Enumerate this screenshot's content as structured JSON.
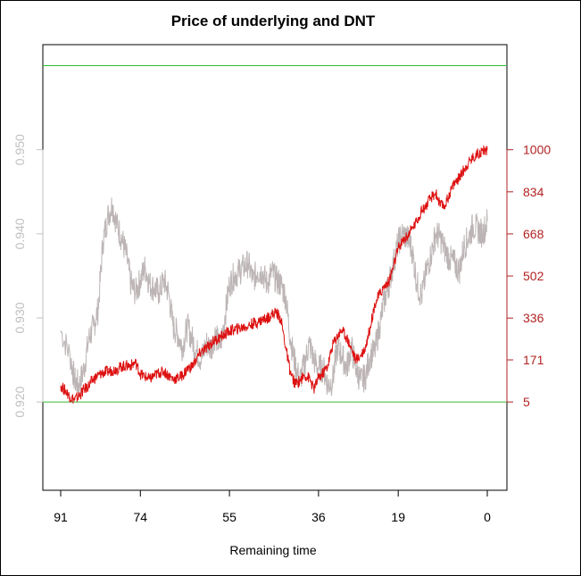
{
  "chart_data": {
    "type": "line",
    "title": "Price of underlying and DNT",
    "xlabel": "Remaining time",
    "x_ticks": [
      "91",
      "74",
      "55",
      "36",
      "19",
      "0"
    ],
    "xlim": [
      91,
      0
    ],
    "left_axis": {
      "ticks": [
        0.92,
        0.93,
        0.94,
        0.95
      ],
      "tick_labels": [
        "0.920",
        "0.930",
        "0.940",
        "0.950"
      ],
      "ylim": [
        0.9095,
        0.9625
      ],
      "color": "#c0c0c0"
    },
    "right_axis": {
      "ticks": [
        5,
        171,
        336,
        502,
        668,
        834,
        1000
      ],
      "tick_labels": [
        "5",
        "171",
        "336",
        "502",
        "668",
        "834",
        "1000"
      ],
      "color": "#b22222"
    },
    "hlines": {
      "values": [
        0.92,
        0.96
      ],
      "color": "#33bb33"
    },
    "series": [
      {
        "color": "#bdb5b5",
        "axis": "left",
        "x": [
          91,
          89,
          88,
          87,
          86,
          85,
          84,
          83,
          82,
          81,
          80,
          79,
          78,
          77,
          76,
          75,
          74,
          73,
          72,
          71,
          70,
          69,
          68,
          67,
          66,
          65,
          64,
          63,
          62,
          61,
          60,
          59,
          58,
          57,
          56,
          55,
          54,
          53,
          52,
          51,
          50,
          49,
          48,
          47,
          46,
          45,
          44,
          43,
          42,
          41,
          40,
          39,
          38,
          37,
          36,
          35,
          34,
          33,
          32,
          31,
          30,
          29,
          28,
          27,
          26,
          25,
          24,
          23,
          22,
          21,
          20,
          19,
          18,
          17,
          16,
          15,
          14,
          13,
          12,
          11,
          10,
          9,
          8,
          7,
          6,
          5,
          4,
          3,
          2,
          1,
          0
        ],
        "values": [
          0.9285,
          0.9255,
          0.9225,
          0.922,
          0.924,
          0.9275,
          0.929,
          0.931,
          0.939,
          0.942,
          0.9435,
          0.941,
          0.9395,
          0.9375,
          0.934,
          0.933,
          0.9345,
          0.936,
          0.934,
          0.9335,
          0.933,
          0.9345,
          0.933,
          0.929,
          0.928,
          0.9265,
          0.929,
          0.9275,
          0.926,
          0.925,
          0.927,
          0.9265,
          0.928,
          0.9265,
          0.93,
          0.934,
          0.935,
          0.9355,
          0.936,
          0.9365,
          0.9345,
          0.9355,
          0.9355,
          0.934,
          0.9355,
          0.9345,
          0.934,
          0.9325,
          0.9275,
          0.9245,
          0.9225,
          0.9245,
          0.927,
          0.925,
          0.924,
          0.924,
          0.922,
          0.9225,
          0.9265,
          0.9255,
          0.924,
          0.9265,
          0.924,
          0.9225,
          0.923,
          0.9255,
          0.926,
          0.929,
          0.932,
          0.934,
          0.9365,
          0.939,
          0.94,
          0.9395,
          0.938,
          0.934,
          0.9325,
          0.9355,
          0.9375,
          0.94,
          0.9395,
          0.938,
          0.937,
          0.9365,
          0.9355,
          0.9385,
          0.9395,
          0.941,
          0.9405,
          0.94,
          0.9415
        ]
      },
      {
        "color": "#dd1111",
        "axis": "right",
        "x": [
          91,
          90,
          89,
          88,
          87,
          86,
          85,
          84,
          83,
          82,
          81,
          80,
          79,
          78,
          77,
          76,
          75,
          74,
          73,
          72,
          71,
          70,
          69,
          68,
          67,
          66,
          65,
          64,
          63,
          62,
          61,
          60,
          59,
          58,
          57,
          56,
          55,
          54,
          53,
          52,
          51,
          50,
          49,
          48,
          47,
          46,
          45,
          44,
          43,
          42,
          41,
          40,
          39,
          38,
          37,
          36,
          35,
          34,
          33,
          32,
          31,
          30,
          29,
          28,
          27,
          26,
          25,
          24,
          23,
          22,
          21,
          20,
          19,
          18,
          17,
          16,
          15,
          14,
          13,
          12,
          11,
          10,
          9,
          8,
          7,
          6,
          5,
          4,
          3,
          2,
          1,
          0
        ],
        "values": [
          70,
          50,
          25,
          15,
          30,
          55,
          70,
          95,
          110,
          120,
          125,
          130,
          135,
          145,
          148,
          150,
          160,
          115,
          105,
          95,
          110,
          120,
          125,
          110,
          95,
          100,
          110,
          135,
          145,
          175,
          205,
          215,
          235,
          250,
          260,
          270,
          285,
          290,
          295,
          300,
          305,
          315,
          320,
          330,
          335,
          350,
          360,
          330,
          220,
          120,
          75,
          90,
          110,
          100,
          55,
          100,
          120,
          150,
          230,
          265,
          290,
          260,
          215,
          170,
          190,
          220,
          300,
          390,
          430,
          460,
          480,
          540,
          610,
          640,
          660,
          690,
          720,
          760,
          780,
          810,
          830,
          780,
          780,
          830,
          870,
          890,
          920,
          950,
          970,
          985,
          995,
          1000
        ]
      }
    ]
  }
}
